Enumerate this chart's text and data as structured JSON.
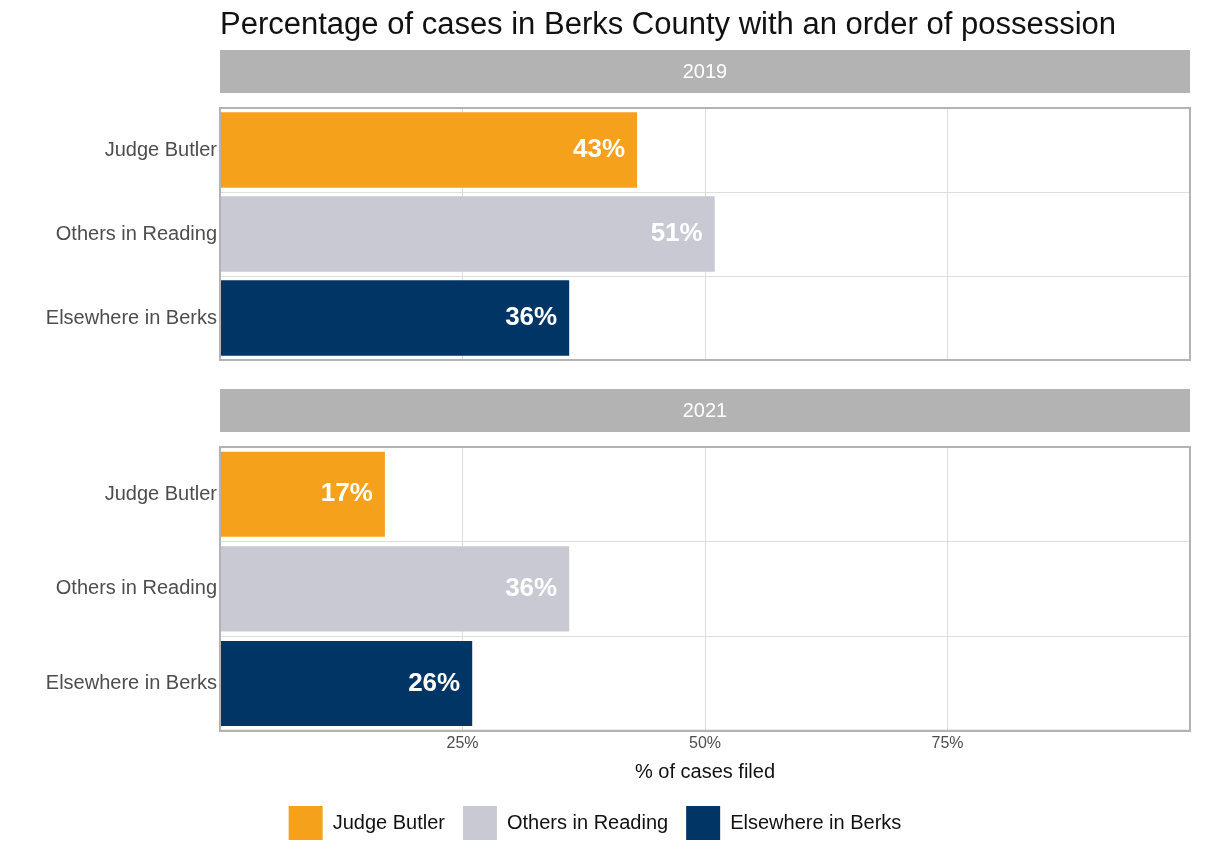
{
  "chart_data": [
    {
      "type": "bar",
      "title": "Percentage of cases in Berks County with an order of possession",
      "subtitle": "2019",
      "orientation": "horizontal",
      "categories": [
        "Judge Butler",
        "Others in Reading",
        "Elsewhere in Berks"
      ],
      "series": [
        {
          "color": "#f5a11c",
          "values": [
            43,
            null,
            null
          ],
          "value_labels": [
            "43%",
            null,
            null
          ]
        },
        {
          "color": "#c9c9d3",
          "values": [
            null,
            51,
            null
          ],
          "value_labels": [
            null,
            "51%",
            null
          ]
        },
        {
          "color": "#003566",
          "values": [
            null,
            null,
            36
          ],
          "value_labels": [
            null,
            null,
            "36%"
          ]
        }
      ],
      "xlim": [
        0,
        100
      ],
      "xticks": [
        {
          "value": 25,
          "label": null
        },
        {
          "value": 50,
          "label": null
        },
        {
          "value": 75,
          "label": null
        }
      ],
      "tick_labels": "y",
      "grid": true
    },
    {
      "type": "bar",
      "subtitle": "2021",
      "orientation": "horizontal",
      "xlabel": "% of cases filed",
      "categories": [
        "Judge Butler",
        "Others in Reading",
        "Elsewhere in Berks"
      ],
      "series": [
        {
          "name": "Judge Butler",
          "color": "#f5a11c",
          "values": [
            17,
            null,
            null
          ],
          "value_labels": [
            "17%",
            null,
            null
          ]
        },
        {
          "name": "Others in Reading",
          "color": "#c9c9d3",
          "values": [
            null,
            36,
            null
          ],
          "value_labels": [
            null,
            "36%",
            null
          ]
        },
        {
          "name": "Elsewhere in Berks",
          "color": "#003566",
          "values": [
            null,
            null,
            26
          ],
          "value_labels": [
            null,
            null,
            "26%"
          ]
        }
      ],
      "xlim": [
        0,
        100
      ],
      "xticks": [
        {
          "value": 25,
          "label": "25%"
        },
        {
          "value": 50,
          "label": "50%"
        },
        {
          "value": 75,
          "label": "75%"
        }
      ],
      "grid": true,
      "legend": "bottom"
    }
  ]
}
